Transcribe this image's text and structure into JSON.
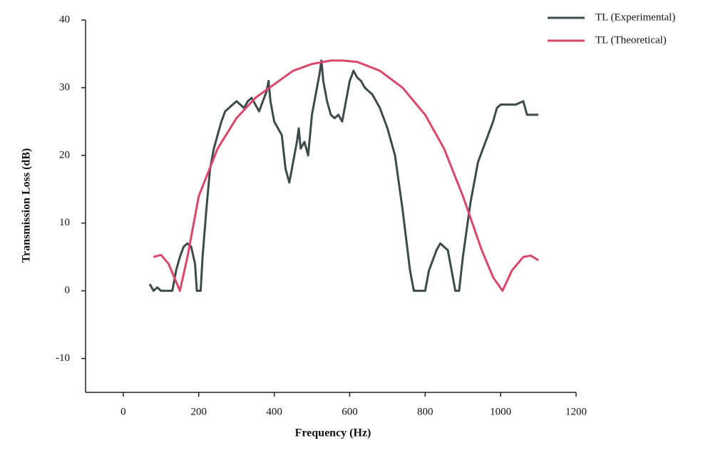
{
  "chart_data": {
    "type": "line",
    "x_label": "Frequency (Hz)",
    "y_label": "Transmission Loss (dB)",
    "xlim": [
      -100,
      1200
    ],
    "xticks": [
      0,
      200,
      400,
      600,
      800,
      1000,
      1200
    ],
    "ylim": [
      -15,
      40
    ],
    "yticks": [
      -10,
      0,
      10,
      20,
      30,
      40
    ],
    "legend": "top-right",
    "series": [
      {
        "name": "TL (Experimental)",
        "color": "#3d4b4b",
        "x": [
          70,
          80,
          90,
          100,
          130,
          140,
          150,
          160,
          170,
          180,
          190,
          195,
          205,
          210,
          220,
          230,
          240,
          250,
          260,
          270,
          280,
          290,
          300,
          310,
          320,
          330,
          340,
          350,
          360,
          370,
          380,
          385,
          390,
          400,
          410,
          420,
          430,
          440,
          450,
          460,
          465,
          470,
          480,
          490,
          500,
          510,
          520,
          525,
          530,
          540,
          550,
          560,
          570,
          580,
          590,
          600,
          610,
          620,
          630,
          640,
          660,
          680,
          700,
          720,
          740,
          760,
          770,
          800,
          810,
          830,
          840,
          860,
          870,
          880,
          890,
          900,
          920,
          940,
          960,
          980,
          990,
          1000,
          1020,
          1040,
          1060,
          1070,
          1090,
          1100
        ],
        "values": [
          1,
          0,
          0.5,
          0,
          0,
          3,
          5,
          6.5,
          7,
          6.5,
          4,
          0,
          0,
          5,
          12,
          18,
          21,
          23,
          25,
          26.5,
          27,
          27.5,
          28,
          27.5,
          27,
          28,
          28.5,
          27.5,
          26.5,
          28,
          29.5,
          31,
          28,
          25,
          24,
          23,
          18,
          16,
          19,
          22,
          24,
          21,
          22,
          20,
          26,
          29,
          32,
          34,
          31,
          28,
          26,
          25.5,
          26,
          25,
          28,
          31,
          32.5,
          31.5,
          31,
          30,
          29,
          27,
          24,
          20,
          12,
          3,
          0,
          0,
          3,
          6,
          7,
          6,
          3,
          0,
          0,
          5,
          13,
          19,
          22,
          25,
          27,
          27.5,
          27.5,
          27.5,
          28,
          26,
          26,
          26
        ]
      },
      {
        "name": "TL (Theoretical)",
        "color": "#d9476a",
        "x": [
          80,
          100,
          120,
          150,
          170,
          200,
          250,
          300,
          350,
          400,
          450,
          500,
          550,
          580,
          620,
          680,
          740,
          800,
          850,
          900,
          950,
          980,
          1005,
          1030,
          1060,
          1080,
          1100
        ],
        "values": [
          5,
          5.3,
          4,
          0,
          5,
          14,
          21,
          25.5,
          28.5,
          30.5,
          32.5,
          33.5,
          34,
          34,
          33.8,
          32.5,
          30,
          26,
          21,
          14,
          6,
          2,
          0,
          3,
          5,
          5.2,
          4.5
        ]
      }
    ]
  }
}
